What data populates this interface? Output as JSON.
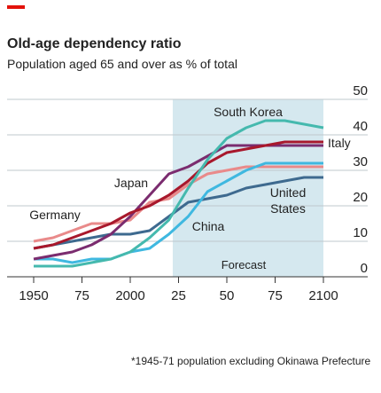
{
  "chart_data": {
    "type": "line",
    "title": "Old-age dependency ratio",
    "subtitle": "Population aged 65 and over as % of total",
    "footnote": "*1945-71 population excluding Okinawa Prefecture",
    "forecast_label": "Forecast",
    "forecast_start": 2022,
    "x": [
      1950,
      1960,
      1970,
      1980,
      1990,
      2000,
      2010,
      2020,
      2030,
      2040,
      2050,
      2060,
      2070,
      2080,
      2090,
      2100
    ],
    "xlim": [
      1950,
      2100
    ],
    "xticks": [
      1950,
      {
        "value": 1975,
        "label": "75"
      },
      2000,
      {
        "value": 2025,
        "label": "25"
      },
      {
        "value": 2050,
        "label": "50"
      },
      {
        "value": 2075,
        "label": "75"
      },
      2100
    ],
    "ylim": [
      0,
      50
    ],
    "yticks": [
      0,
      10,
      20,
      30,
      40,
      50
    ],
    "grid": true,
    "series": [
      {
        "name": "Germany",
        "color": "#e98a8a",
        "values": [
          10,
          11,
          13,
          15,
          15,
          16,
          21,
          22,
          26,
          29,
          30,
          31,
          31,
          31,
          31,
          31
        ]
      },
      {
        "name": "United States",
        "color": "#3e6a8f",
        "values": [
          8,
          9,
          10,
          11,
          12,
          12,
          13,
          17,
          21,
          22,
          23,
          25,
          26,
          27,
          28,
          28
        ]
      },
      {
        "name": "China",
        "color": "#3fb8e0",
        "values": [
          5,
          5,
          4,
          5,
          5,
          7,
          8,
          12,
          17,
          24,
          27,
          30,
          32,
          32,
          32,
          32
        ]
      },
      {
        "name": "Japan",
        "color": "#7b2c6f",
        "values": [
          5,
          6,
          7,
          9,
          12,
          17,
          23,
          29,
          31,
          34,
          37,
          37,
          37,
          37,
          37,
          37
        ]
      },
      {
        "name": "Italy",
        "color": "#a8182c",
        "values": [
          8,
          9,
          11,
          13,
          15,
          18,
          20,
          23,
          27,
          32,
          35,
          36,
          37,
          38,
          38,
          38
        ]
      },
      {
        "name": "South Korea",
        "color": "#45b9ae",
        "values": [
          3,
          3,
          3,
          4,
          5,
          7,
          11,
          16,
          25,
          33,
          39,
          42,
          44,
          44,
          43,
          42
        ]
      }
    ]
  }
}
